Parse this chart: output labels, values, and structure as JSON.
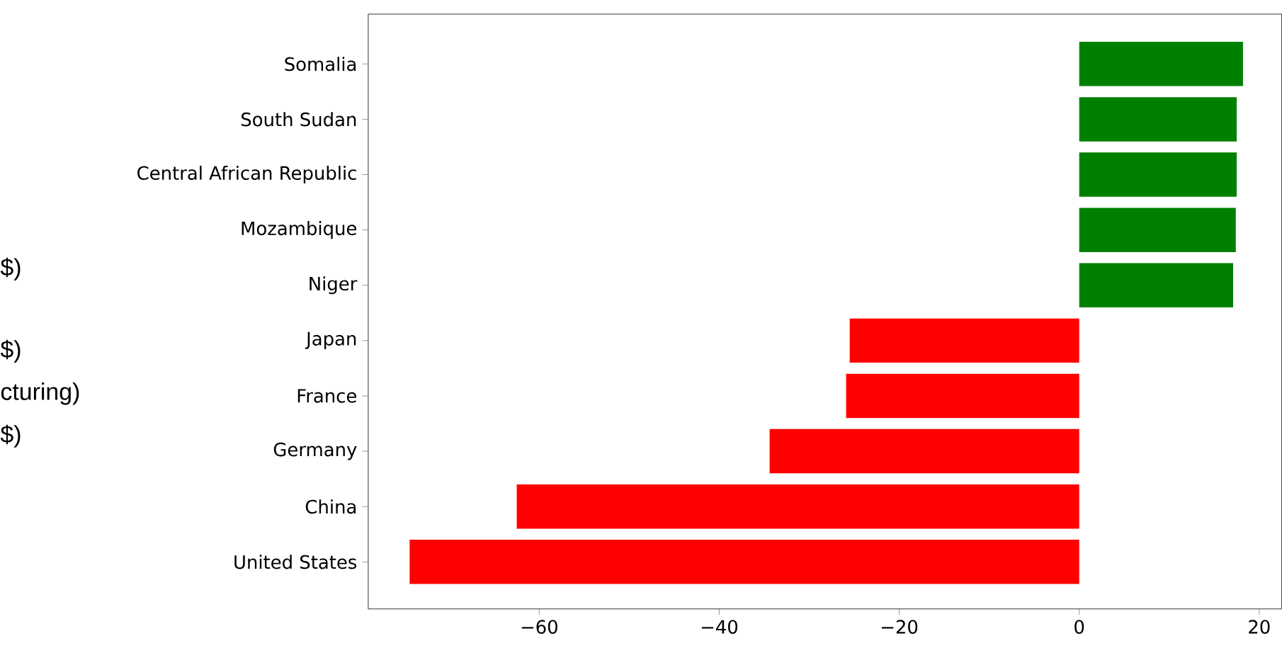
{
  "chart_data": {
    "type": "bar",
    "orientation": "horizontal",
    "categories": [
      "Somalia",
      "South Sudan",
      "Central African Republic",
      "Mozambique",
      "Niger",
      "Japan",
      "France",
      "Germany",
      "China",
      "United States"
    ],
    "values": [
      18.2,
      17.5,
      17.5,
      17.4,
      17.1,
      -25.5,
      -25.9,
      -34.4,
      -62.5,
      -74.4
    ],
    "colors": [
      "#008000",
      "#008000",
      "#008000",
      "#008000",
      "#008000",
      "#ff0000",
      "#ff0000",
      "#ff0000",
      "#ff0000",
      "#ff0000"
    ],
    "xlim": [
      -79,
      22.5
    ],
    "xticks": [
      {
        "value": -60,
        "label": "−60"
      },
      {
        "value": -40,
        "label": "−40"
      },
      {
        "value": -20,
        "label": "−20"
      },
      {
        "value": 0,
        "label": "0"
      },
      {
        "value": 20,
        "label": "20"
      }
    ],
    "annotations": [
      "$)",
      "$)",
      "cturing)",
      "$)"
    ]
  }
}
